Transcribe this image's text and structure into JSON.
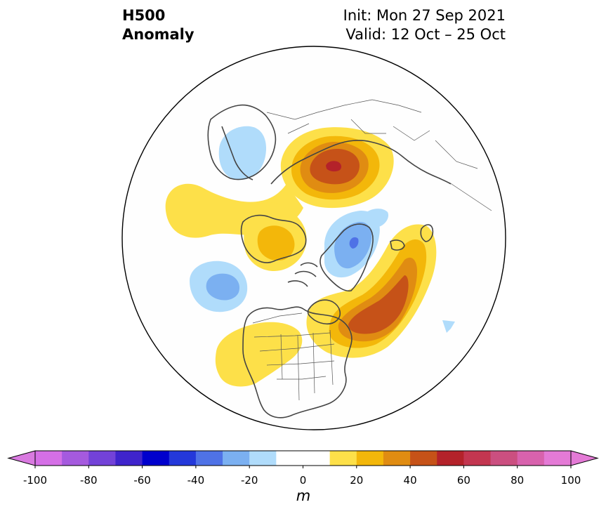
{
  "header": {
    "variable": "H500",
    "field": "Anomaly",
    "init": "Init: Mon 27 Sep 2021",
    "valid": "Valid: 12 Oct – 25 Oct"
  },
  "colorbar": {
    "unit": "m",
    "min": -100,
    "max": 100,
    "step": 10,
    "extend": "both",
    "ticks": [
      -100,
      -80,
      -60,
      -40,
      -20,
      0,
      20,
      40,
      60,
      80,
      100
    ],
    "tick_labels": [
      "-100",
      "-80",
      "-60",
      "-40",
      "-20",
      "0",
      "20",
      "40",
      "60",
      "80",
      "100"
    ],
    "colors": [
      "#d56fe6",
      "#a55ade",
      "#7342d8",
      "#3f24cc",
      "#0000cd",
      "#2438da",
      "#4f72e6",
      "#7bb0f1",
      "#b0dcfb",
      "#ffffff",
      "#ffffff",
      "#fde049",
      "#f3b70a",
      "#e08c12",
      "#c65218",
      "#b4222a",
      "#c33650",
      "#cb4f80",
      "#d862ad",
      "#e47ad6"
    ],
    "under_color": "#d97ae0",
    "over_color": "#e47ad6"
  },
  "map": {
    "projection": "north polar stereographic",
    "anomaly_features": [
      {
        "region": "Siberia",
        "sign": "positive",
        "peak_m": 60
      },
      {
        "region": "Greenland",
        "sign": "negative",
        "peak_m": -40
      },
      {
        "region": "North Atlantic / eastern Canada",
        "sign": "positive",
        "peak_m": 50
      },
      {
        "region": "Western North America",
        "sign": "positive",
        "peak_m": 20
      },
      {
        "region": "Bering Sea / Alaska",
        "sign": "positive",
        "peak_m": 20
      },
      {
        "region": "North Pacific",
        "sign": "negative",
        "peak_m": -30
      },
      {
        "region": "Northern Europe",
        "sign": "negative",
        "peak_m": -20
      }
    ]
  }
}
